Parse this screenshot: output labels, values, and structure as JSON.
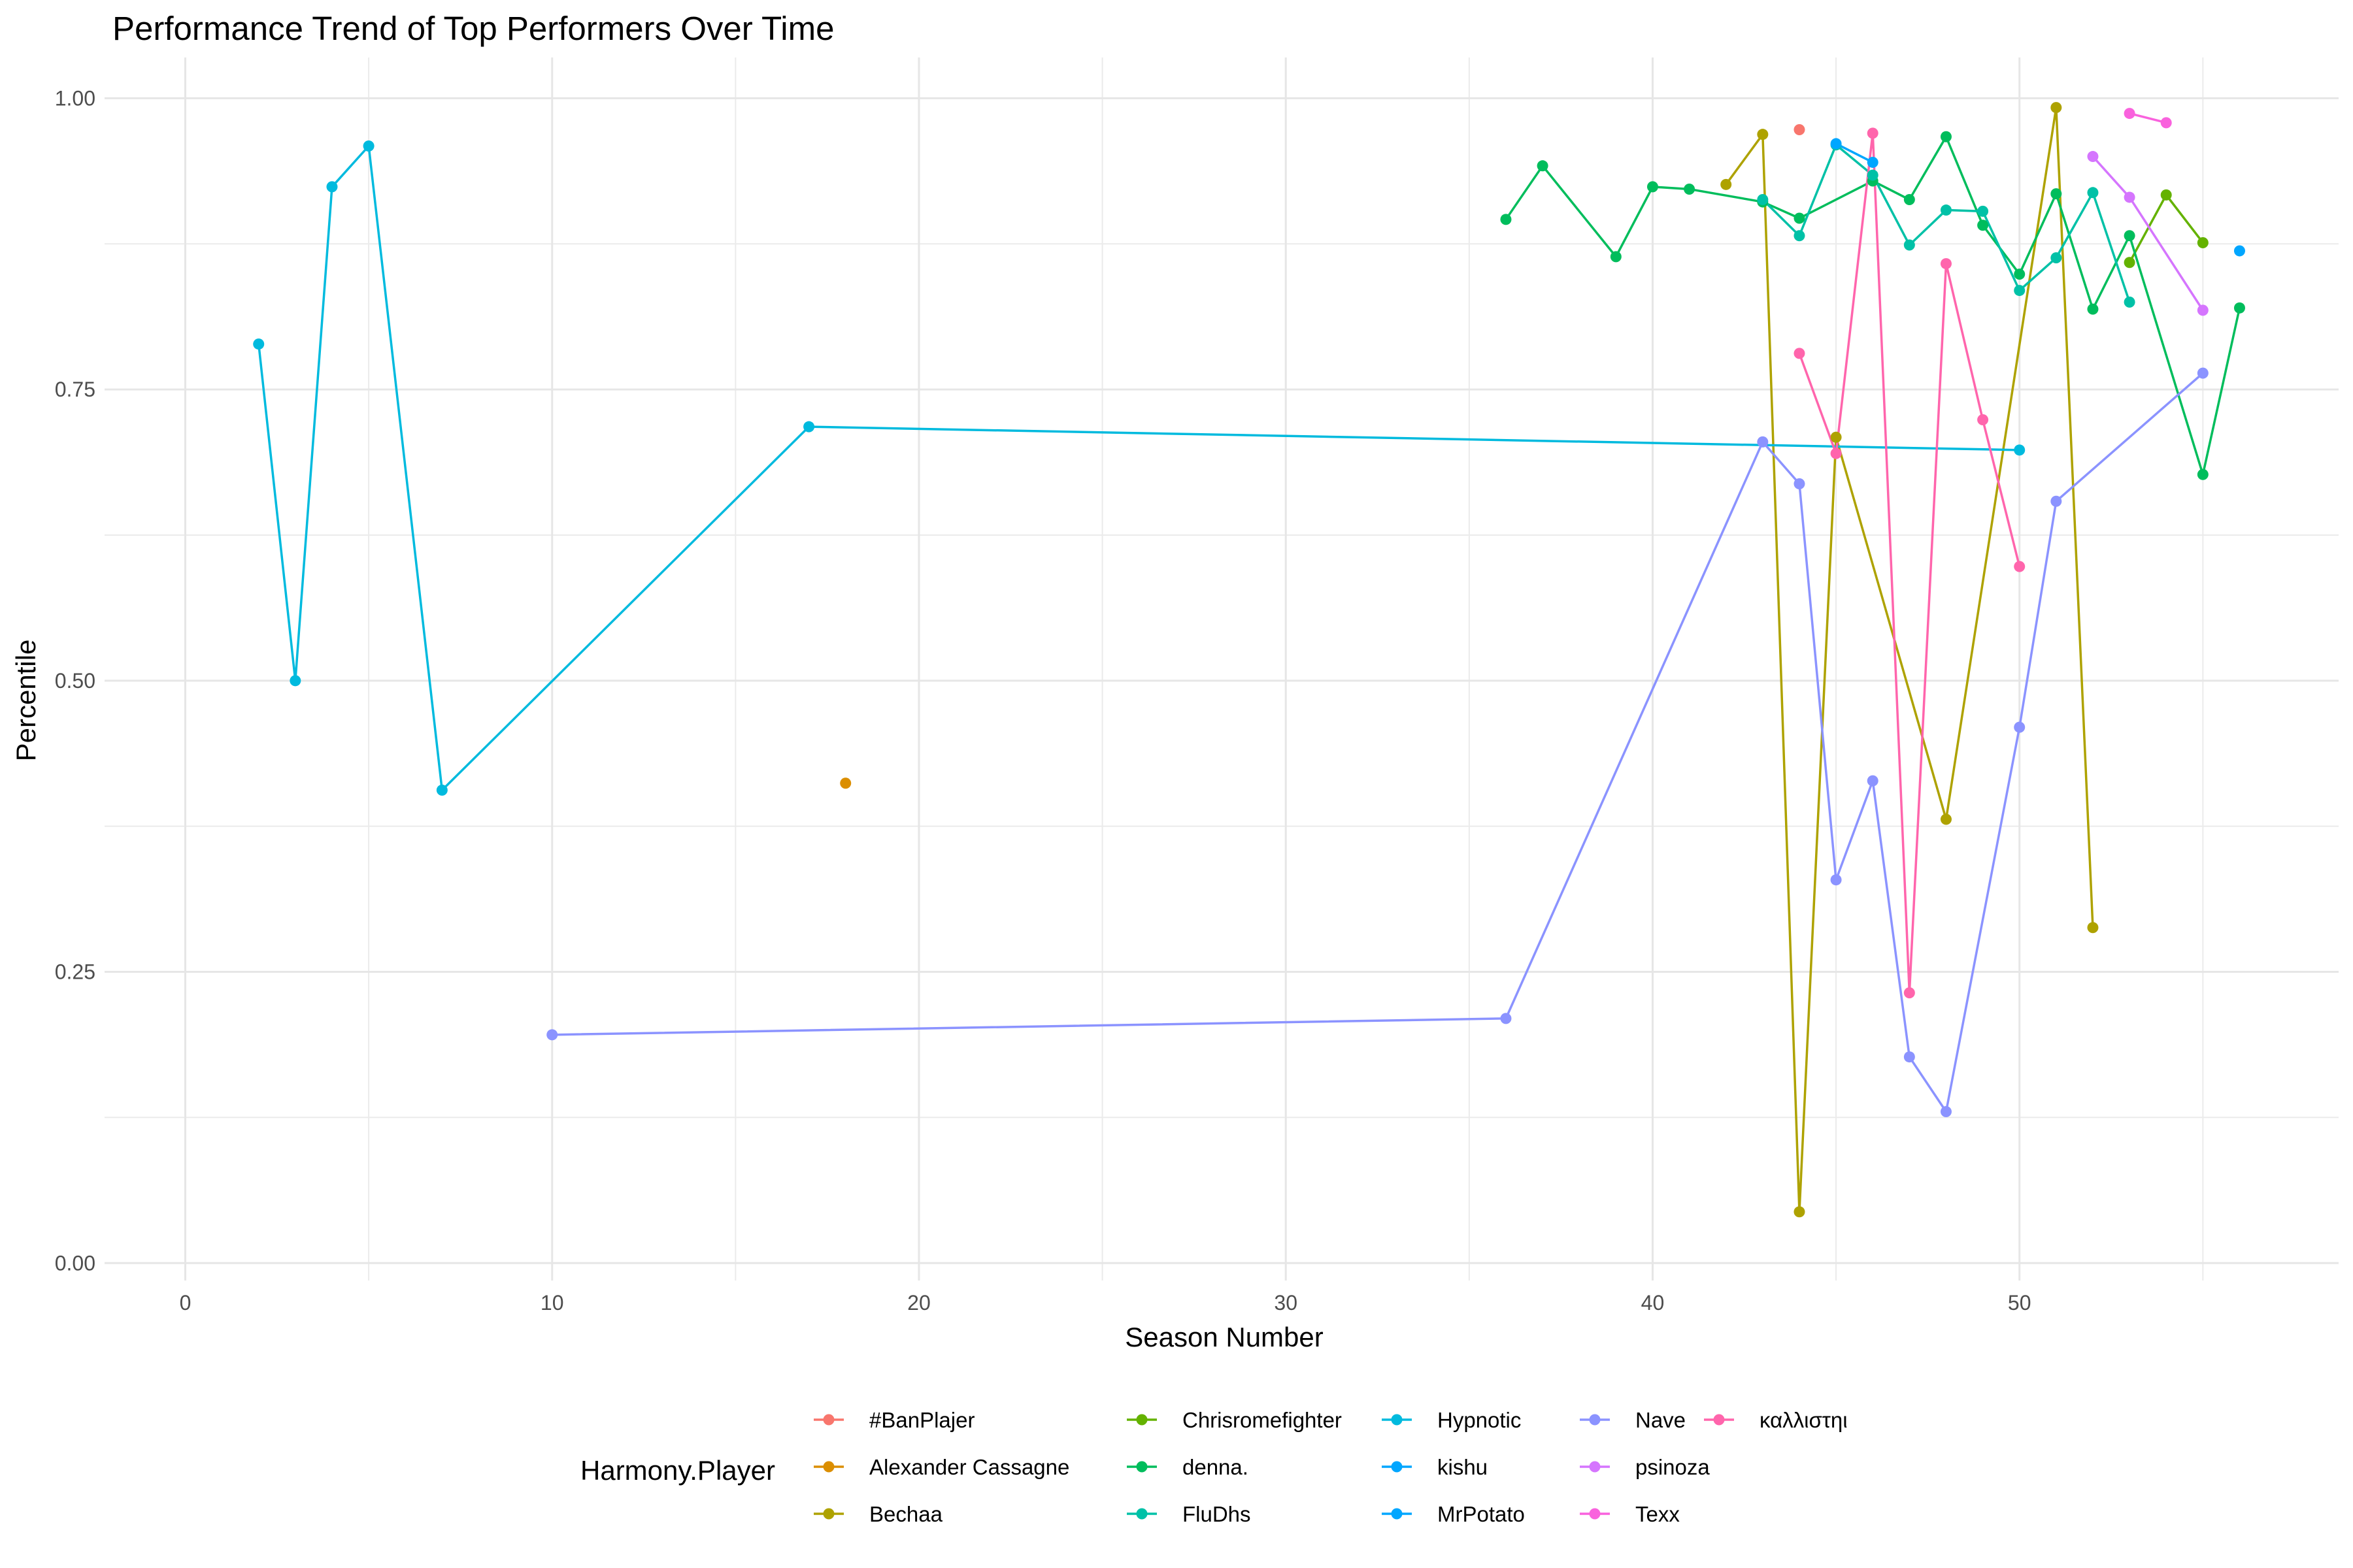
{
  "chart_data": {
    "type": "line",
    "title": "Performance Trend of Top Performers Over Time",
    "xlabel": "Season Number",
    "ylabel": "Percentile",
    "xlim": [
      -2.2,
      58.7
    ],
    "ylim": [
      -0.015,
      1.035
    ],
    "xticks": [
      0,
      10,
      20,
      30,
      40,
      50
    ],
    "yticks": [
      0.0,
      0.25,
      0.5,
      0.75,
      1.0
    ],
    "ytick_labels": [
      "0.00",
      "0.25",
      "0.50",
      "0.75",
      "1.00"
    ],
    "legend_title": "Harmony.Player",
    "legend_position": "bottom",
    "series": [
      {
        "name": "#BanPlajer",
        "color": "#F8766D",
        "x": [
          44
        ],
        "y": [
          0.973
        ]
      },
      {
        "name": "Alexander Cassagne",
        "color": "#DB8E00",
        "x": [
          18
        ],
        "y": [
          0.412
        ]
      },
      {
        "name": "Bechaa",
        "color": "#AEA200",
        "x": [
          42,
          43,
          44,
          45,
          48,
          51,
          52
        ],
        "y": [
          0.926,
          0.969,
          0.044,
          0.709,
          0.381,
          0.992,
          0.288
        ]
      },
      {
        "name": "Chrisromefighter",
        "color": "#64B200",
        "x": [
          53,
          54,
          55
        ],
        "y": [
          0.859,
          0.917,
          0.876
        ]
      },
      {
        "name": "denna.",
        "color": "#00BD5C",
        "x": [
          36,
          37,
          39,
          40,
          41,
          43,
          44,
          46,
          47,
          48,
          49,
          50,
          51,
          52,
          53,
          55,
          56
        ],
        "y": [
          0.896,
          0.942,
          0.864,
          0.924,
          0.922,
          0.911,
          0.897,
          0.929,
          0.913,
          0.967,
          0.891,
          0.849,
          0.918,
          0.819,
          0.882,
          0.677,
          0.82
        ]
      },
      {
        "name": "FluDhs",
        "color": "#00C1A7",
        "x": [
          43,
          44,
          45,
          46,
          47,
          48,
          49,
          50,
          51,
          52,
          53
        ],
        "y": [
          0.913,
          0.882,
          0.96,
          0.934,
          0.874,
          0.904,
          0.903,
          0.835,
          0.863,
          0.919,
          0.825
        ]
      },
      {
        "name": "Hypnotic",
        "color": "#00BADE",
        "x": [
          2,
          3,
          4,
          5,
          7,
          17,
          50
        ],
        "y": [
          0.789,
          0.5,
          0.924,
          0.959,
          0.406,
          0.718,
          0.698
        ]
      },
      {
        "name": "kishu",
        "color": "#00A6FF",
        "x": [
          45,
          46
        ],
        "y": [
          0.961,
          0.945
        ]
      },
      {
        "name": "MrPotato",
        "color": "#00A6FF",
        "x": [
          56
        ],
        "y": [
          0.869
        ]
      },
      {
        "name": "Nave",
        "color": "#8B93FF",
        "x": [
          10,
          36,
          43,
          44,
          45,
          46,
          47,
          48,
          50,
          51,
          55
        ],
        "y": [
          0.196,
          0.21,
          0.705,
          0.669,
          0.329,
          0.414,
          0.177,
          0.13,
          0.46,
          0.654,
          0.764
        ]
      },
      {
        "name": "psinoza",
        "color": "#D575FE",
        "x": [
          52,
          53,
          55
        ],
        "y": [
          0.95,
          0.915,
          0.818
        ]
      },
      {
        "name": "Texx",
        "color": "#F962DD",
        "x": [
          53,
          54
        ],
        "y": [
          0.987,
          0.979
        ]
      },
      {
        "name": "καλλιστηι",
        "color": "#FF65AC",
        "x": [
          44,
          45,
          46,
          47,
          48,
          49,
          50
        ],
        "y": [
          0.781,
          0.695,
          0.97,
          0.232,
          0.858,
          0.724,
          0.598
        ]
      }
    ]
  }
}
